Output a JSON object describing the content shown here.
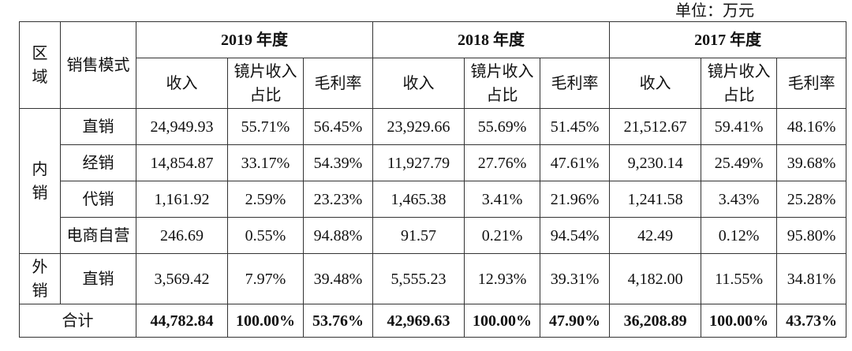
{
  "unit": "单位：万元",
  "headers": {
    "region": "区域",
    "mode": "销售模式",
    "years": [
      "2019 年度",
      "2018 年度",
      "2017 年度"
    ],
    "sub": [
      "收入",
      "镜片收入占比",
      "毛利率"
    ]
  },
  "groups": [
    {
      "region": "内销",
      "rows": [
        {
          "mode": "直销",
          "cells": [
            "24,949.93",
            "55.71%",
            "56.45%",
            "23,929.66",
            "55.69%",
            "51.45%",
            "21,512.67",
            "59.41%",
            "48.16%"
          ]
        },
        {
          "mode": "经销",
          "cells": [
            "14,854.87",
            "33.17%",
            "54.39%",
            "11,927.79",
            "27.76%",
            "47.61%",
            "9,230.14",
            "25.49%",
            "39.68%"
          ]
        },
        {
          "mode": "代销",
          "cells": [
            "1,161.92",
            "2.59%",
            "23.23%",
            "1,465.38",
            "3.41%",
            "21.96%",
            "1,241.58",
            "3.43%",
            "25.28%"
          ]
        },
        {
          "mode": "电商自营",
          "cells": [
            "246.69",
            "0.55%",
            "94.88%",
            "91.57",
            "0.21%",
            "94.54%",
            "42.49",
            "0.12%",
            "95.80%"
          ]
        }
      ]
    },
    {
      "region": "外销",
      "rows": [
        {
          "mode": "直销",
          "cells": [
            "3,569.42",
            "7.97%",
            "39.48%",
            "5,555.23",
            "12.93%",
            "39.31%",
            "4,182.00",
            "11.55%",
            "34.81%"
          ]
        }
      ]
    }
  ],
  "total": {
    "label": "合计",
    "cells": [
      "44,782.84",
      "100.00%",
      "53.76%",
      "42,969.63",
      "100.00%",
      "47.90%",
      "36,208.89",
      "100.00%",
      "43.73%"
    ]
  }
}
